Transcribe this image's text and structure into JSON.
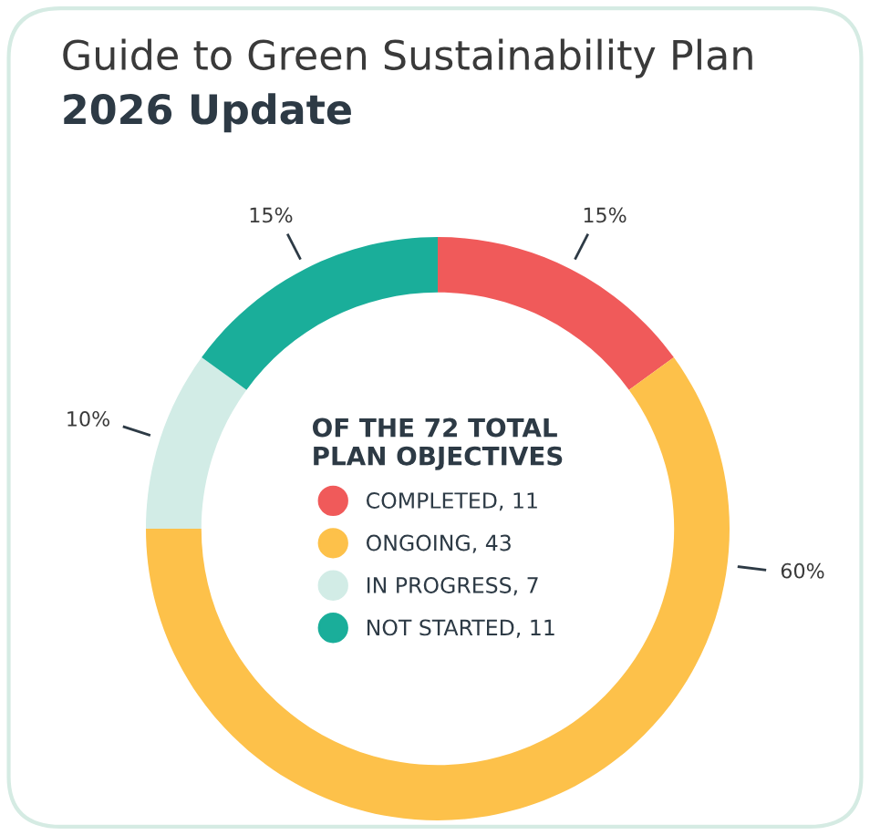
{
  "chart_data": {
    "type": "donut",
    "title": "Guide to Green Sustainability Plan",
    "subtitle": "2026 Update",
    "legend_title": "OF THE 72 TOTAL\nPLAN OBJECTIVES",
    "categories": [
      "COMPLETED, 11",
      "ONGOING, 43",
      "IN PROGRESS, 7",
      "NOT STARTED, 11"
    ],
    "values": [
      15,
      60,
      10,
      15
    ],
    "value_labels": [
      "15%",
      "60%",
      "10%",
      "15%"
    ],
    "colors": [
      "#f05a5a",
      "#fdc14a",
      "#d2ece6",
      "#1aae9a"
    ],
    "legend": "center"
  }
}
